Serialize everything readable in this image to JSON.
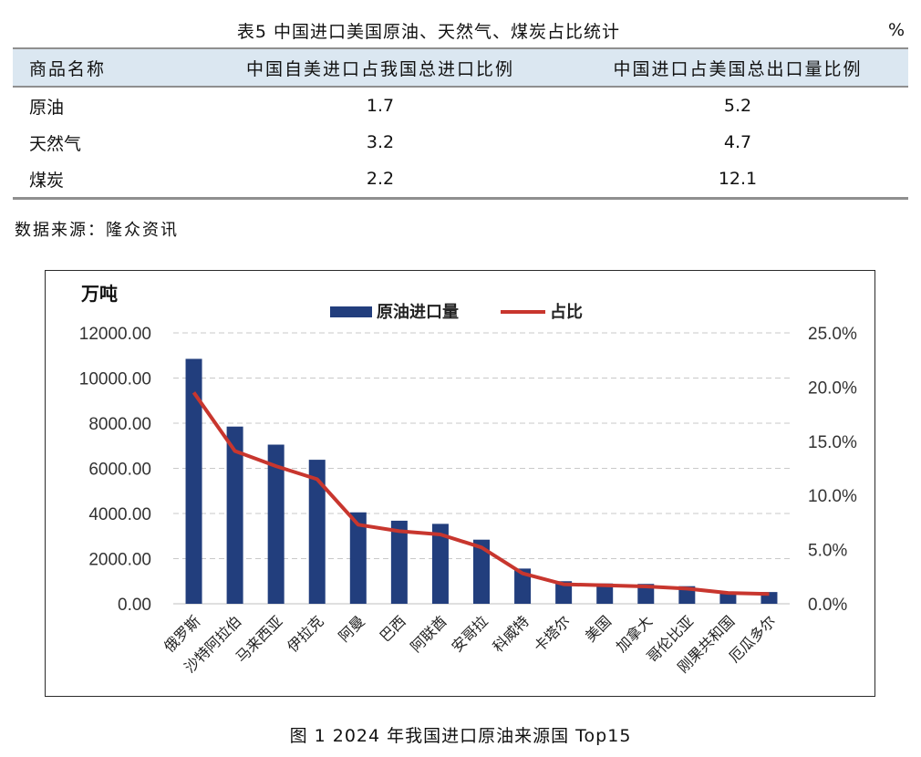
{
  "table": {
    "caption": "表5 中国进口美国原油、天然气、煤炭占比统计",
    "unit": "%",
    "headers": [
      "商品名称",
      "中国自美进口占我国总进口比例",
      "中国进口占美国总出口量比例"
    ],
    "rows": [
      [
        "原油",
        "1.7",
        "5.2"
      ],
      [
        "天然气",
        "3.2",
        "4.7"
      ],
      [
        "煤炭",
        "2.2",
        "12.1"
      ]
    ]
  },
  "source_note": "数据来源：隆众资讯",
  "figure_caption": "图 1  2024 年我国进口原油来源国 Top15",
  "chart_data": {
    "type": "bar",
    "categories": [
      "俄罗斯",
      "沙特阿拉伯",
      "马来西亚",
      "伊拉克",
      "阿曼",
      "巴西",
      "阿联酋",
      "安哥拉",
      "科威特",
      "卡塔尔",
      "美国",
      "加拿大",
      "哥伦比亚",
      "刚果共和国",
      "厄瓜多尔"
    ],
    "series": [
      {
        "name": "原油进口量",
        "type": "bar",
        "axis": "left",
        "color": "#223e7d",
        "values": [
          10850,
          7850,
          7050,
          6380,
          4050,
          3680,
          3540,
          2840,
          1560,
          1000,
          900,
          880,
          780,
          530,
          520
        ]
      },
      {
        "name": "占比",
        "type": "line",
        "axis": "right",
        "color": "#c8362e",
        "values": [
          19.5,
          14.1,
          12.7,
          11.5,
          7.3,
          6.7,
          6.4,
          5.2,
          2.8,
          1.8,
          1.7,
          1.6,
          1.4,
          1.0,
          0.9
        ]
      }
    ],
    "y_unit_label": "万吨",
    "ylim": [
      0,
      12000
    ],
    "yticks": [
      "0.00",
      "2000.00",
      "4000.00",
      "6000.00",
      "8000.00",
      "10000.00",
      "12000.00"
    ],
    "y2lim": [
      0,
      25
    ],
    "y2ticks": [
      "0.0%",
      "5.0%",
      "10.0%",
      "15.0%",
      "20.0%",
      "25.0%"
    ],
    "grid": true,
    "legend_position": "top-center"
  }
}
